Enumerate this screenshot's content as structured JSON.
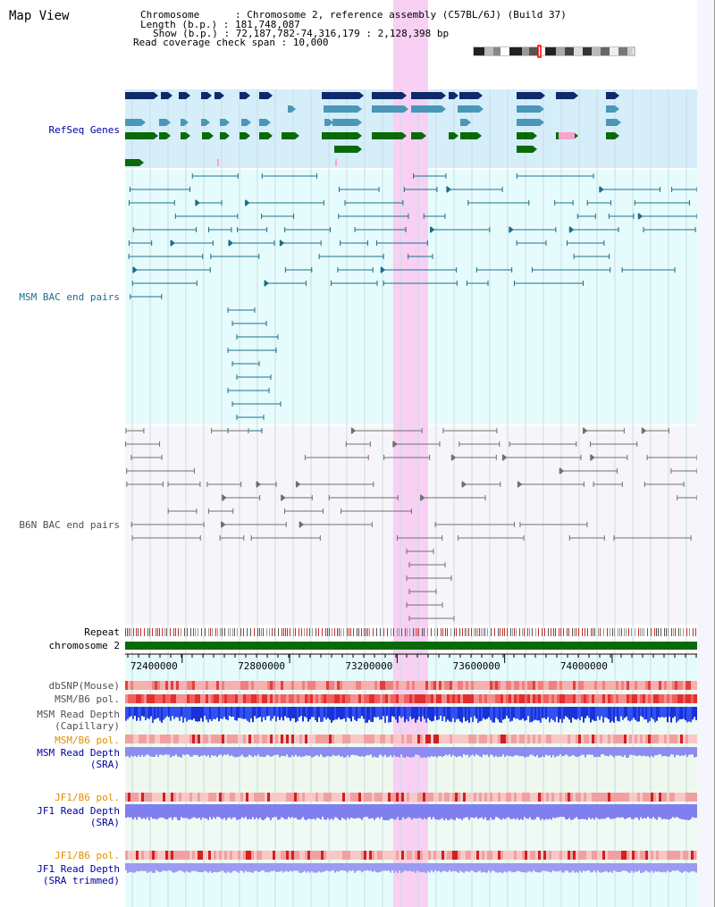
{
  "title": "Map View",
  "header": {
    "chromosome": "Chromosome      : Chromosome 2, reference assembly (C57BL/6J) (Build 37)",
    "length": "Length (b.p.) : 181,748,087",
    "show": "Show (b.p.) : 72,187,782-74,316,179 : 2,128,398 bp",
    "coverage": "Read coverage check span : 10,000"
  },
  "tracks": {
    "refseq": "RefSeq Genes",
    "msm_bac": "MSM BAC end pairs",
    "b6n_bac": "B6N BAC end pairs",
    "repeat": "Repeat",
    "chromosome": "chromosome 2",
    "dbsnp": "dbSNP(Mouse)",
    "msm_b6_pol_1": "MSM/B6 pol.",
    "msm_depth_cap_1": "MSM Read Depth",
    "msm_depth_cap_2": "(Capillary)",
    "msm_b6_pol_2": "MSM/B6 pol.",
    "msm_depth_sra_1": "MSM Read Depth",
    "msm_depth_sra_2": "(SRA)",
    "jf1_b6_pol_1": "JF1/B6 pol.",
    "jf1_depth_sra_1": "JF1 Read Depth",
    "jf1_depth_sra_2": "(SRA)",
    "jf1_b6_pol_2": "JF1/B6 pol.",
    "jf1_depth_trim_1": "JF1 Read Depth",
    "jf1_depth_trim_2": "(SRA trimmed)"
  },
  "axis": {
    "ticks": [
      "72400000",
      "72800000",
      "73200000",
      "73600000",
      "74000000"
    ],
    "range": [
      72187782,
      74316179
    ]
  },
  "highlight": [
    73185000,
    73315000
  ],
  "colors": {
    "refseq_bg": "#d6eefa",
    "msm_bg": "#e6fcfc",
    "b6n_bg": "#f6f6fa",
    "highlight": "#f7d0f3",
    "navy": "#0e2a6b",
    "teal": "#4a97b8",
    "green": "#0a6a0a",
    "pink": "#f5a3cc",
    "msm_line": "#1c6f8c",
    "b6n_line": "#707070",
    "blue_label": "#0000a0",
    "teal_label": "#1c6f8c",
    "gray_label": "#505050",
    "orange_label": "#e09000"
  }
}
